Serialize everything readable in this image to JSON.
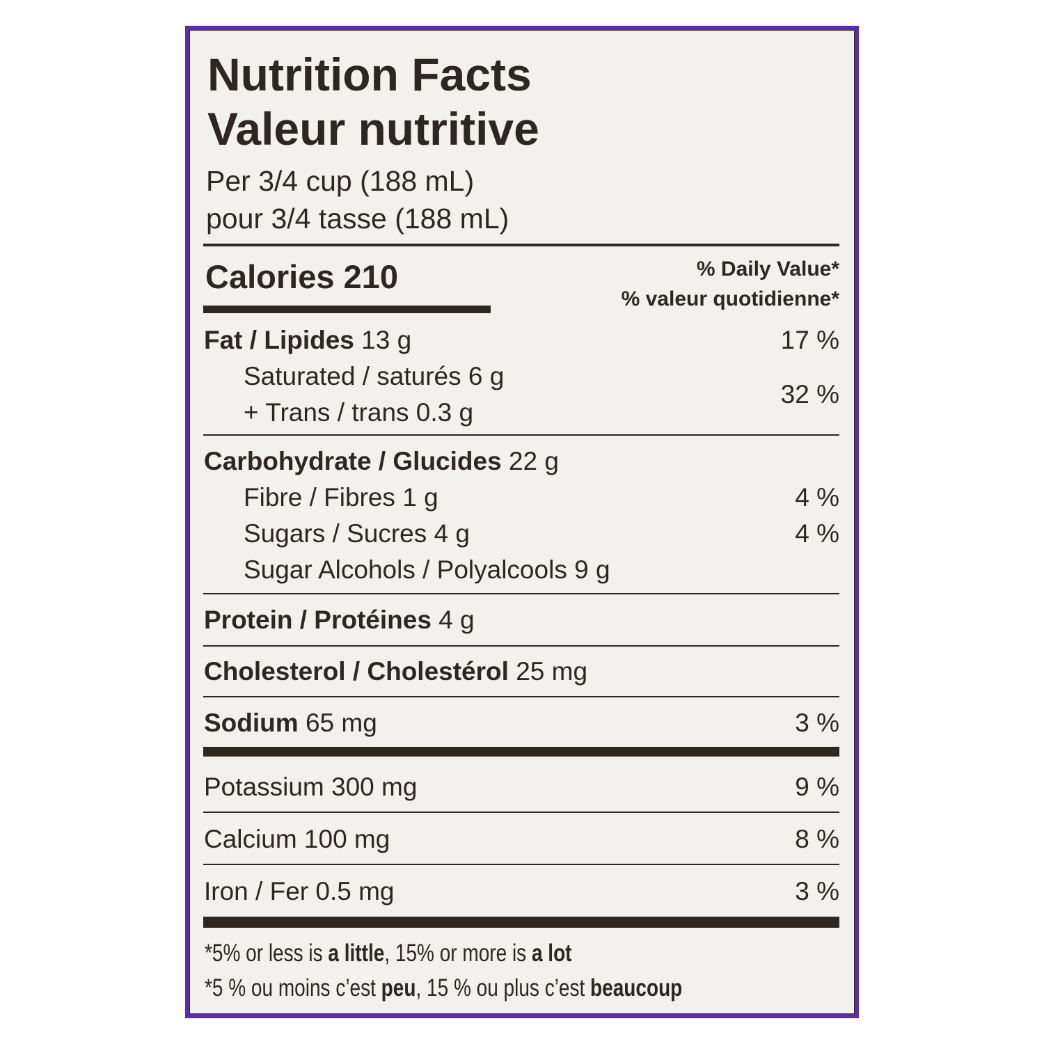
{
  "colors": {
    "frame": "#5a2ea6",
    "label_bg": "#f3f1ed",
    "text": "#2e2621"
  },
  "title_en": "Nutrition Facts",
  "title_fr": "Valeur nutritive",
  "serving_en": "Per 3/4 cup (188 mL)",
  "serving_fr": "pour 3/4 tasse (188 mL)",
  "calories": {
    "label": "Calories",
    "value": "210"
  },
  "daily_value_en": "% Daily Value*",
  "daily_value_fr": "% valeur quotidienne*",
  "nutrients": {
    "fat": {
      "label": "Fat / Lipides",
      "amount": "13 g",
      "dv": "17 %"
    },
    "saturated": {
      "label": "Saturated / saturés 6 g"
    },
    "trans": {
      "label": "+ Trans / trans 0.3 g"
    },
    "sat_trans_dv": "32 %",
    "carb": {
      "label": "Carbohydrate / Glucides",
      "amount": "22 g"
    },
    "fibre": {
      "label": "Fibre / Fibres 1 g",
      "dv": "4 %"
    },
    "sugars": {
      "label": "Sugars / Sucres 4 g",
      "dv": "4 %"
    },
    "sugar_alcohols": {
      "label": "Sugar Alcohols / Polyalcools 9 g"
    },
    "protein": {
      "label": "Protein / Protéines",
      "amount": "4 g"
    },
    "cholesterol": {
      "label": "Cholesterol / Cholestérol",
      "amount": "25 mg"
    },
    "sodium": {
      "label": "Sodium",
      "amount": "65 mg",
      "dv": "3 %"
    },
    "potassium": {
      "label": "Potassium 300 mg",
      "dv": "9 %"
    },
    "calcium": {
      "label": "Calcium 100 mg",
      "dv": "8 %"
    },
    "iron": {
      "label": "Iron / Fer 0.5 mg",
      "dv": "3 %"
    }
  },
  "footnote_en": {
    "a": "*5% or less is ",
    "b": "a little",
    "c": ", 15% or more is ",
    "d": "a lot"
  },
  "footnote_fr": {
    "a": "*5 % ou moins c’est ",
    "b": "peu",
    "c": ", 15 % ou plus c’est ",
    "d": "beaucoup"
  }
}
